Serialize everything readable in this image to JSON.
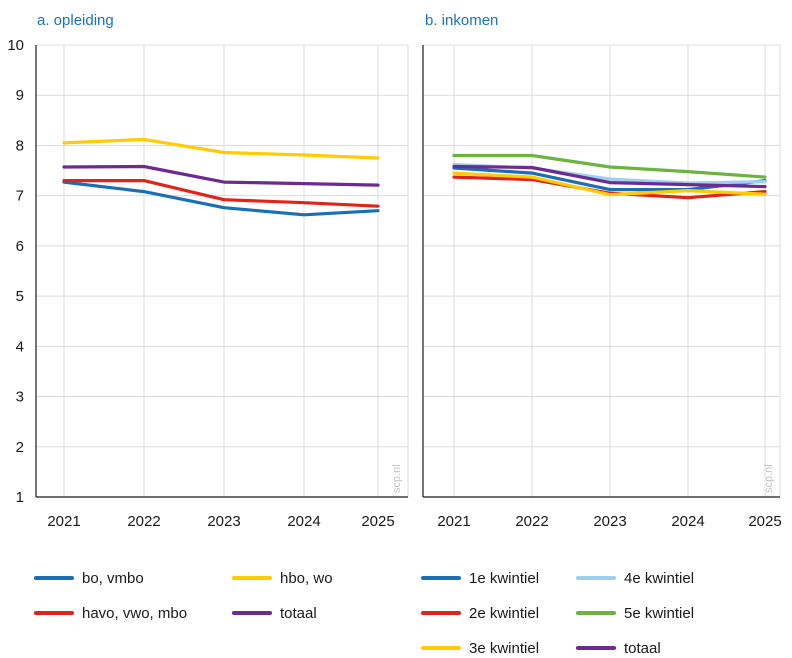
{
  "chart_data": [
    {
      "type": "line",
      "title": "a. opleiding",
      "watermark": "scp.nl",
      "x": [
        "2021",
        "2022",
        "2023",
        "2024",
        "2025"
      ],
      "ylim": [
        1,
        10
      ],
      "yticks": [
        "1",
        "2",
        "3",
        "4",
        "5",
        "6",
        "7",
        "8",
        "9",
        "10"
      ],
      "grid": true,
      "legend": "bottom",
      "series": [
        {
          "name": "bo, vmbo",
          "color": "#1a6fb5",
          "values": [
            7.27,
            7.08,
            6.76,
            6.62,
            6.7
          ]
        },
        {
          "name": "hbo, wo",
          "color": "#ffcb05",
          "values": [
            8.05,
            8.12,
            7.86,
            7.81,
            7.75
          ]
        },
        {
          "name": "havo, vwo, mbo",
          "color": "#e2231a",
          "values": [
            7.3,
            7.3,
            6.92,
            6.86,
            6.79
          ]
        },
        {
          "name": "totaal",
          "color": "#6f2a91",
          "values": [
            7.57,
            7.58,
            7.27,
            7.24,
            7.21
          ]
        }
      ]
    },
    {
      "type": "line",
      "title": "b. inkomen",
      "watermark": "scp.nl",
      "x": [
        "2021",
        "2022",
        "2023",
        "2024",
        "2025"
      ],
      "ylim": [
        1,
        10
      ],
      "grid": true,
      "legend": "bottom",
      "series": [
        {
          "name": "1e kwintiel",
          "color": "#1a6fb5",
          "values": [
            7.55,
            7.45,
            7.12,
            7.12,
            7.3
          ]
        },
        {
          "name": "4e kwintiel",
          "color": "#9dcfef",
          "values": [
            7.62,
            7.55,
            7.33,
            7.25,
            7.28
          ]
        },
        {
          "name": "2e kwintiel",
          "color": "#e2231a",
          "values": [
            7.37,
            7.32,
            7.05,
            6.96,
            7.08
          ]
        },
        {
          "name": "5e kwintiel",
          "color": "#6cb33f",
          "values": [
            7.8,
            7.8,
            7.57,
            7.48,
            7.37
          ]
        },
        {
          "name": "3e kwintiel",
          "color": "#ffcb05",
          "values": [
            7.45,
            7.37,
            7.02,
            7.1,
            7.03
          ]
        },
        {
          "name": "totaal",
          "color": "#6f2a91",
          "values": [
            7.58,
            7.56,
            7.26,
            7.22,
            7.18
          ]
        }
      ]
    }
  ]
}
